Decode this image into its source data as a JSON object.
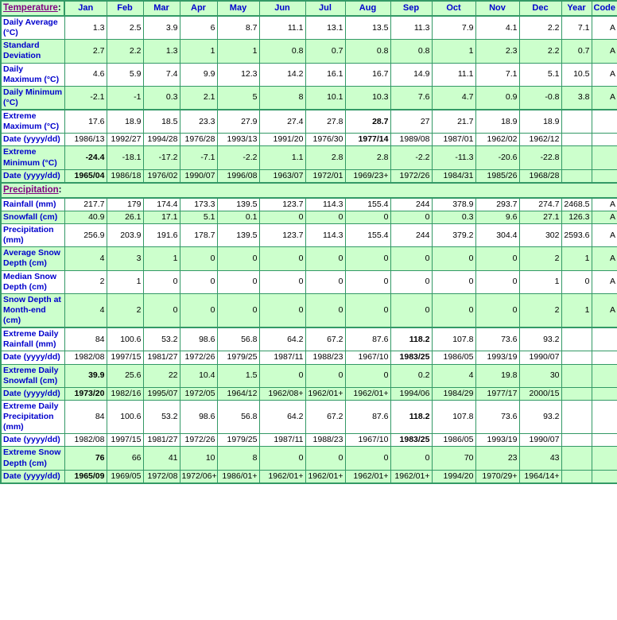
{
  "colors": {
    "row_shade_green": "#ccffcc",
    "row_shade_white": "#ffffff",
    "grid_border_green": "#339966",
    "label_blue": "#0000cc",
    "section_link_purple": "#800080",
    "value_text": "#000000"
  },
  "table": {
    "temperature_header": {
      "link": "Temperature",
      "suffix": ":"
    },
    "columns": [
      "Jan",
      "Feb",
      "Mar",
      "Apr",
      "May",
      "Jun",
      "Jul",
      "Aug",
      "Sep",
      "Oct",
      "Nov",
      "Dec",
      "Year",
      "Code"
    ],
    "rows": [
      {
        "type": "data",
        "label": "Daily Average (°C)",
        "shade": "white",
        "bold": null,
        "thick_top": false,
        "values": [
          "1.3",
          "2.5",
          "3.9",
          "6",
          "8.7",
          "11.1",
          "13.1",
          "13.5",
          "11.3",
          "7.9",
          "4.1",
          "2.2",
          "7.1",
          "A"
        ]
      },
      {
        "type": "data",
        "label": "Standard Deviation",
        "shade": "green",
        "bold": null,
        "thick_top": false,
        "values": [
          "2.7",
          "2.2",
          "1.3",
          "1",
          "1",
          "0.8",
          "0.7",
          "0.8",
          "0.8",
          "1",
          "2.3",
          "2.2",
          "0.7",
          "A"
        ]
      },
      {
        "type": "data",
        "label": "Daily Maximum (°C)",
        "shade": "white",
        "bold": null,
        "thick_top": false,
        "values": [
          "4.6",
          "5.9",
          "7.4",
          "9.9",
          "12.3",
          "14.2",
          "16.1",
          "16.7",
          "14.9",
          "11.1",
          "7.1",
          "5.1",
          "10.5",
          "A"
        ]
      },
      {
        "type": "data",
        "label": "Daily Minimum (°C)",
        "shade": "green",
        "bold": null,
        "thick_top": false,
        "values": [
          "-2.1",
          "-1",
          "0.3",
          "2.1",
          "5",
          "8",
          "10.1",
          "10.3",
          "7.6",
          "4.7",
          "0.9",
          "-0.8",
          "3.8",
          "A"
        ]
      },
      {
        "type": "data",
        "label": "Extreme Maximum (°C)",
        "shade": "white",
        "bold": 7,
        "thick_top": true,
        "values": [
          "17.6",
          "18.9",
          "18.5",
          "23.3",
          "27.9",
          "27.4",
          "27.8",
          "28.7",
          "27",
          "21.7",
          "18.9",
          "18.9",
          "",
          ""
        ]
      },
      {
        "type": "data",
        "label": "Date (yyyy/dd)",
        "shade": "white",
        "bold": 7,
        "thick_top": false,
        "values": [
          "1986/13",
          "1992/27",
          "1994/28",
          "1976/28",
          "1993/13",
          "1991/20",
          "1976/30",
          "1977/14",
          "1989/08",
          "1987/01",
          "1962/02",
          "1962/12",
          "",
          ""
        ]
      },
      {
        "type": "data",
        "label": "Extreme Minimum (°C)",
        "shade": "green",
        "bold": 0,
        "thick_top": false,
        "values": [
          "-24.4",
          "-18.1",
          "-17.2",
          "-7.1",
          "-2.2",
          "1.1",
          "2.8",
          "2.8",
          "-2.2",
          "-11.3",
          "-20.6",
          "-22.8",
          "",
          ""
        ]
      },
      {
        "type": "data",
        "label": "Date (yyyy/dd)",
        "shade": "green",
        "bold": 0,
        "thick_top": false,
        "values": [
          "1965/04",
          "1986/18",
          "1976/02",
          "1990/07",
          "1996/08",
          "1963/07",
          "1972/01",
          "1969/23+",
          "1972/26",
          "1984/31",
          "1985/26",
          "1968/28",
          "",
          ""
        ]
      },
      {
        "type": "section",
        "link": "Precipitation",
        "suffix": ":"
      },
      {
        "type": "data",
        "label": "Rainfall (mm)",
        "shade": "white",
        "bold": null,
        "thick_top": false,
        "values": [
          "217.7",
          "179",
          "174.4",
          "173.3",
          "139.5",
          "123.7",
          "114.3",
          "155.4",
          "244",
          "378.9",
          "293.7",
          "274.7",
          "2468.5",
          "A"
        ]
      },
      {
        "type": "data",
        "label": "Snowfall (cm)",
        "shade": "green",
        "bold": null,
        "thick_top": false,
        "values": [
          "40.9",
          "26.1",
          "17.1",
          "5.1",
          "0.1",
          "0",
          "0",
          "0",
          "0",
          "0.3",
          "9.6",
          "27.1",
          "126.3",
          "A"
        ]
      },
      {
        "type": "data",
        "label": "Precipitation (mm)",
        "shade": "white",
        "bold": null,
        "thick_top": false,
        "values": [
          "256.9",
          "203.9",
          "191.6",
          "178.7",
          "139.5",
          "123.7",
          "114.3",
          "155.4",
          "244",
          "379.2",
          "304.4",
          "302",
          "2593.6",
          "A"
        ]
      },
      {
        "type": "data",
        "label": "Average Snow Depth (cm)",
        "shade": "green",
        "bold": null,
        "thick_top": false,
        "values": [
          "4",
          "3",
          "1",
          "0",
          "0",
          "0",
          "0",
          "0",
          "0",
          "0",
          "0",
          "2",
          "1",
          "A"
        ]
      },
      {
        "type": "data",
        "label": "Median Snow Depth (cm)",
        "shade": "white",
        "bold": null,
        "thick_top": false,
        "values": [
          "2",
          "1",
          "0",
          "0",
          "0",
          "0",
          "0",
          "0",
          "0",
          "0",
          "0",
          "1",
          "0",
          "A"
        ]
      },
      {
        "type": "data",
        "label": "Snow Depth at Month-end (cm)",
        "shade": "green",
        "bold": null,
        "thick_top": false,
        "values": [
          "4",
          "2",
          "0",
          "0",
          "0",
          "0",
          "0",
          "0",
          "0",
          "0",
          "0",
          "2",
          "1",
          "A"
        ]
      },
      {
        "type": "data",
        "label": "Extreme Daily Rainfall (mm)",
        "shade": "white",
        "bold": 8,
        "thick_top": true,
        "values": [
          "84",
          "100.6",
          "53.2",
          "98.6",
          "56.8",
          "64.2",
          "67.2",
          "87.6",
          "118.2",
          "107.8",
          "73.6",
          "93.2",
          "",
          ""
        ]
      },
      {
        "type": "data",
        "label": "Date (yyyy/dd)",
        "shade": "white",
        "bold": 8,
        "thick_top": false,
        "values": [
          "1982/08",
          "1997/15",
          "1981/27",
          "1972/26",
          "1979/25",
          "1987/11",
          "1988/23",
          "1967/10",
          "1983/25",
          "1986/05",
          "1993/19",
          "1990/07",
          "",
          ""
        ]
      },
      {
        "type": "data",
        "label": "Extreme Daily Snowfall (cm)",
        "shade": "green",
        "bold": 0,
        "thick_top": false,
        "values": [
          "39.9",
          "25.6",
          "22",
          "10.4",
          "1.5",
          "0",
          "0",
          "0",
          "0.2",
          "4",
          "19.8",
          "30",
          "",
          ""
        ]
      },
      {
        "type": "data",
        "label": "Date (yyyy/dd)",
        "shade": "green",
        "bold": 0,
        "thick_top": false,
        "values": [
          "1973/20",
          "1982/16",
          "1995/07",
          "1972/05",
          "1964/12",
          "1962/08+",
          "1962/01+",
          "1962/01+",
          "1994/06",
          "1984/29",
          "1977/17",
          "2000/15",
          "",
          ""
        ]
      },
      {
        "type": "data",
        "label": "Extreme Daily Precipitation (mm)",
        "shade": "white",
        "bold": 8,
        "thick_top": false,
        "values": [
          "84",
          "100.6",
          "53.2",
          "98.6",
          "56.8",
          "64.2",
          "67.2",
          "87.6",
          "118.2",
          "107.8",
          "73.6",
          "93.2",
          "",
          ""
        ]
      },
      {
        "type": "data",
        "label": "Date (yyyy/dd)",
        "shade": "white",
        "bold": 8,
        "thick_top": false,
        "values": [
          "1982/08",
          "1997/15",
          "1981/27",
          "1972/26",
          "1979/25",
          "1987/11",
          "1988/23",
          "1967/10",
          "1983/25",
          "1986/05",
          "1993/19",
          "1990/07",
          "",
          ""
        ]
      },
      {
        "type": "data",
        "label": "Extreme Snow Depth (cm)",
        "shade": "green",
        "bold": 0,
        "thick_top": false,
        "values": [
          "76",
          "66",
          "41",
          "10",
          "8",
          "0",
          "0",
          "0",
          "0",
          "70",
          "23",
          "43",
          "",
          ""
        ]
      },
      {
        "type": "data",
        "label": "Date (yyyy/dd)",
        "shade": "green",
        "bold": 0,
        "thick_top": false,
        "values": [
          "1965/09",
          "1969/05",
          "1972/08",
          "1972/06+",
          "1986/01+",
          "1962/01+",
          "1962/01+",
          "1962/01+",
          "1962/01+",
          "1994/20",
          "1970/29+",
          "1964/14+",
          "",
          ""
        ]
      }
    ]
  }
}
